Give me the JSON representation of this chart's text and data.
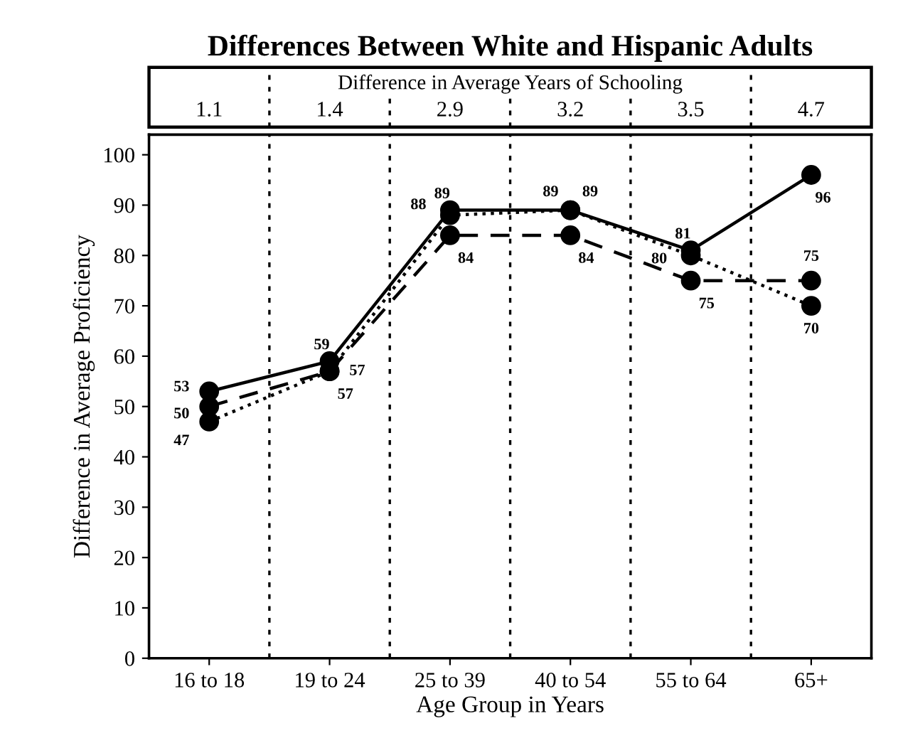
{
  "chart_data": {
    "type": "line",
    "title": "Differences Between White and Hispanic Adults",
    "xlabel": "Age Group in Years",
    "ylabel": "Difference in Average Proficiency",
    "categories": [
      "16 to 18",
      "19 to 24",
      "25 to 39",
      "40 to 54",
      "55 to 64",
      "65+"
    ],
    "series": [
      {
        "color": "#000000",
        "line_style": "solid",
        "values": [
          53,
          59,
          89,
          89,
          81,
          96
        ]
      },
      {
        "color": "#000000",
        "line_style": "dashed",
        "values": [
          50,
          57,
          84,
          84,
          75,
          75
        ]
      },
      {
        "color": "#000000",
        "line_style": "dotted",
        "values": [
          47,
          57,
          88,
          89,
          80,
          70
        ]
      }
    ],
    "marker": "circle",
    "data_labels": true,
    "grid": false,
    "legend": false,
    "ylim": [
      0,
      104
    ],
    "yticks": [
      0,
      10,
      20,
      30,
      40,
      50,
      60,
      70,
      80,
      90,
      100
    ],
    "annotations": [
      "Difference in Average Years of Schooling",
      "1.1",
      "1.4",
      "2.9",
      "3.2",
      "3.5",
      "4.7"
    ]
  }
}
